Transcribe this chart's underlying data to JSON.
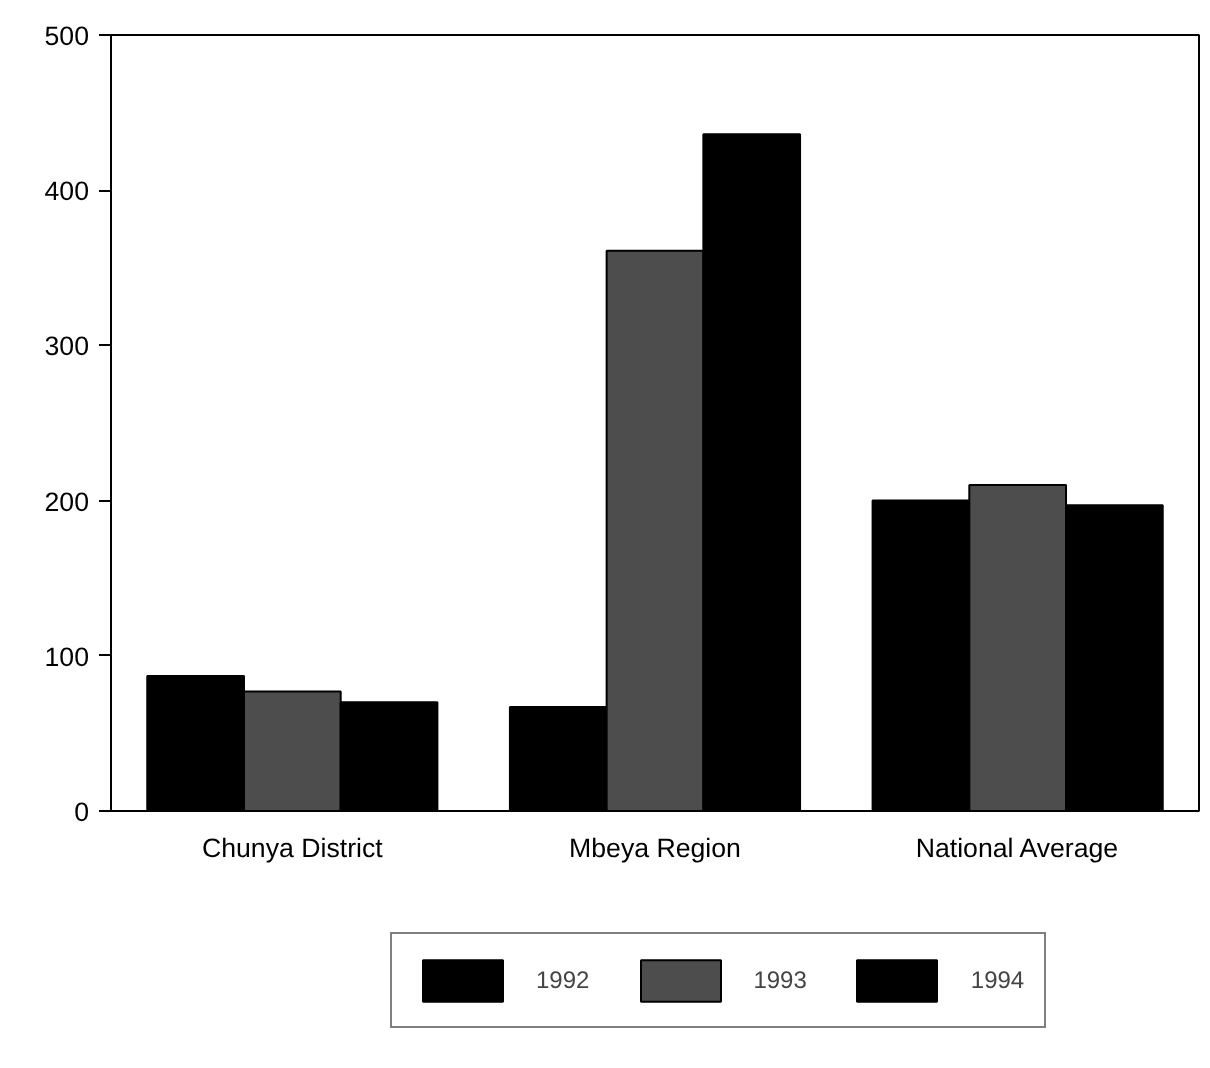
{
  "chart_data": {
    "type": "bar",
    "categories": [
      "Chunya District",
      "Mbeya Region",
      "National Average"
    ],
    "series": [
      {
        "name": "1992",
        "color": "#000000",
        "values": [
          87,
          67,
          200
        ]
      },
      {
        "name": "1993",
        "color": "#4d4d4d",
        "values": [
          77,
          361,
          210
        ]
      },
      {
        "name": "1994",
        "color": "#000000",
        "values": [
          70,
          436,
          197
        ]
      }
    ],
    "ylim": [
      0,
      500
    ],
    "yticks": [
      0,
      100,
      200,
      300,
      400,
      500
    ],
    "grid": false,
    "legend": "bottom"
  }
}
